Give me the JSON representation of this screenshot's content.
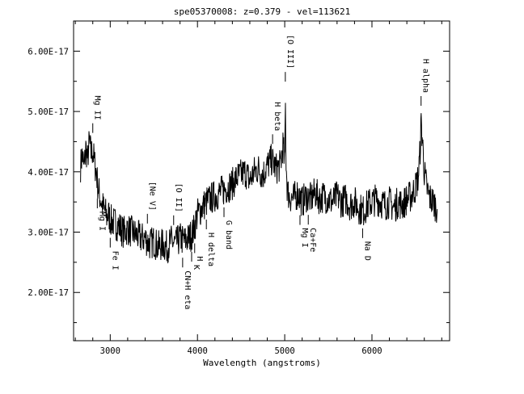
{
  "chart_data": {
    "type": "line",
    "title": "spe05370008: z=0.379 - vel=113621",
    "xlabel": "Wavelength (angstroms)",
    "ylabel": "",
    "xlim": [
      2580,
      6890
    ],
    "ylim": [
      1.2e-17,
      6.5e-17
    ],
    "x_ticks": [
      3000,
      4000,
      5000,
      6000
    ],
    "x_tick_labels": [
      "3000",
      "4000",
      "5000",
      "6000"
    ],
    "y_ticks": [
      2e-17,
      3e-17,
      4e-17,
      5e-17,
      6e-17
    ],
    "y_tick_labels": [
      "2.00E-17",
      "3.00E-17",
      "4.00E-17",
      "5.00E-17",
      "6.00E-17"
    ],
    "grid": false,
    "series": [
      {
        "color": "#000000",
        "x": [
          2660,
          2680,
          2700,
          2720,
          2740,
          2760,
          2780,
          2800,
          2820,
          2840,
          2860,
          2880,
          2900,
          2920,
          2940,
          2960,
          2980,
          3000,
          3050,
          3100,
          3150,
          3200,
          3250,
          3300,
          3350,
          3400,
          3450,
          3500,
          3550,
          3600,
          3650,
          3700,
          3750,
          3800,
          3850,
          3900,
          3950,
          4000,
          4050,
          4100,
          4150,
          4200,
          4250,
          4300,
          4350,
          4400,
          4450,
          4500,
          4550,
          4600,
          4650,
          4700,
          4750,
          4800,
          4850,
          4900,
          4950,
          4980,
          5000,
          5007,
          5015,
          5030,
          5050,
          5100,
          5150,
          5200,
          5250,
          5300,
          5350,
          5400,
          5450,
          5500,
          5550,
          5600,
          5650,
          5700,
          5750,
          5800,
          5850,
          5900,
          5950,
          6000,
          6050,
          6100,
          6150,
          6200,
          6250,
          6300,
          6350,
          6400,
          6450,
          6500,
          6530,
          6550,
          6563,
          6580,
          6600,
          6620,
          6650,
          6700,
          6750
        ],
        "values": [
          4.1e-17,
          4.3e-17,
          4.05e-17,
          4.4e-17,
          4.2e-17,
          4.5e-17,
          4.3e-17,
          4.35e-17,
          4.15e-17,
          4e-17,
          3.75e-17,
          3.6e-17,
          3.5e-17,
          3.4e-17,
          3.35e-17,
          3.25e-17,
          3.3e-17,
          3.2e-17,
          3.15e-17,
          3.1e-17,
          3e-17,
          3.05e-17,
          3e-17,
          2.95e-17,
          2.9e-17,
          2.9e-17,
          2.8e-17,
          2.85e-17,
          2.75e-17,
          2.8e-17,
          2.75e-17,
          2.85e-17,
          2.8e-17,
          2.9e-17,
          2.85e-17,
          2.9e-17,
          3e-17,
          3.3e-17,
          3.4e-17,
          3.5e-17,
          3.55e-17,
          3.6e-17,
          3.65e-17,
          3.7e-17,
          3.75e-17,
          3.8e-17,
          3.9e-17,
          3.95e-17,
          4e-17,
          3.85e-17,
          4e-17,
          4.05e-17,
          3.95e-17,
          4.1e-17,
          4.2e-17,
          4.05e-17,
          4.1e-17,
          4.45e-17,
          4.1e-17,
          5.2e-17,
          4.2e-17,
          3.7e-17,
          3.6e-17,
          3.55e-17,
          3.65e-17,
          3.5e-17,
          3.6e-17,
          3.55e-17,
          3.65e-17,
          3.55e-17,
          3.6e-17,
          3.55e-17,
          3.5e-17,
          3.6e-17,
          3.5e-17,
          3.55e-17,
          3.45e-17,
          3.5e-17,
          3.4e-17,
          3.35e-17,
          3.45e-17,
          3.5e-17,
          3.55e-17,
          3.5e-17,
          3.45e-17,
          3.5e-17,
          3.4e-17,
          3.5e-17,
          3.45e-17,
          3.55e-17,
          3.6e-17,
          3.75e-17,
          3.9e-17,
          4.3e-17,
          4.8e-17,
          4.5e-17,
          4e-17,
          3.8e-17,
          3.6e-17,
          3.5e-17,
          3.4e-17
        ]
      }
    ],
    "line_labels": [
      {
        "wavelength": 2800,
        "text": "Mg II",
        "position": "above"
      },
      {
        "wavelength": 3426,
        "text": "[Ne V]",
        "position": "above"
      },
      {
        "wavelength": 3727,
        "text": "[O II]",
        "position": "above"
      },
      {
        "wavelength": 4861,
        "text": "H beta",
        "position": "above"
      },
      {
        "wavelength": 5007,
        "text": "[O III]",
        "position": "above"
      },
      {
        "wavelength": 6563,
        "text": "H alpha",
        "position": "above"
      },
      {
        "wavelength": 2852,
        "text": "Mg I",
        "position": "below"
      },
      {
        "wavelength": 3000,
        "text": "Fe I",
        "position": "below"
      },
      {
        "wavelength": 3830,
        "text": "CN+H eta",
        "position": "below"
      },
      {
        "wavelength": 3933,
        "text": "K",
        "position": "below"
      },
      {
        "wavelength": 3968,
        "text": "H",
        "position": "below"
      },
      {
        "wavelength": 4102,
        "text": "H delta",
        "position": "below"
      },
      {
        "wavelength": 4304,
        "text": "G band",
        "position": "below"
      },
      {
        "wavelength": 5175,
        "text": "Mg I",
        "position": "below"
      },
      {
        "wavelength": 5270,
        "text": "Ca+Fe",
        "position": "below"
      },
      {
        "wavelength": 5893,
        "text": "Na D",
        "position": "below"
      }
    ]
  }
}
